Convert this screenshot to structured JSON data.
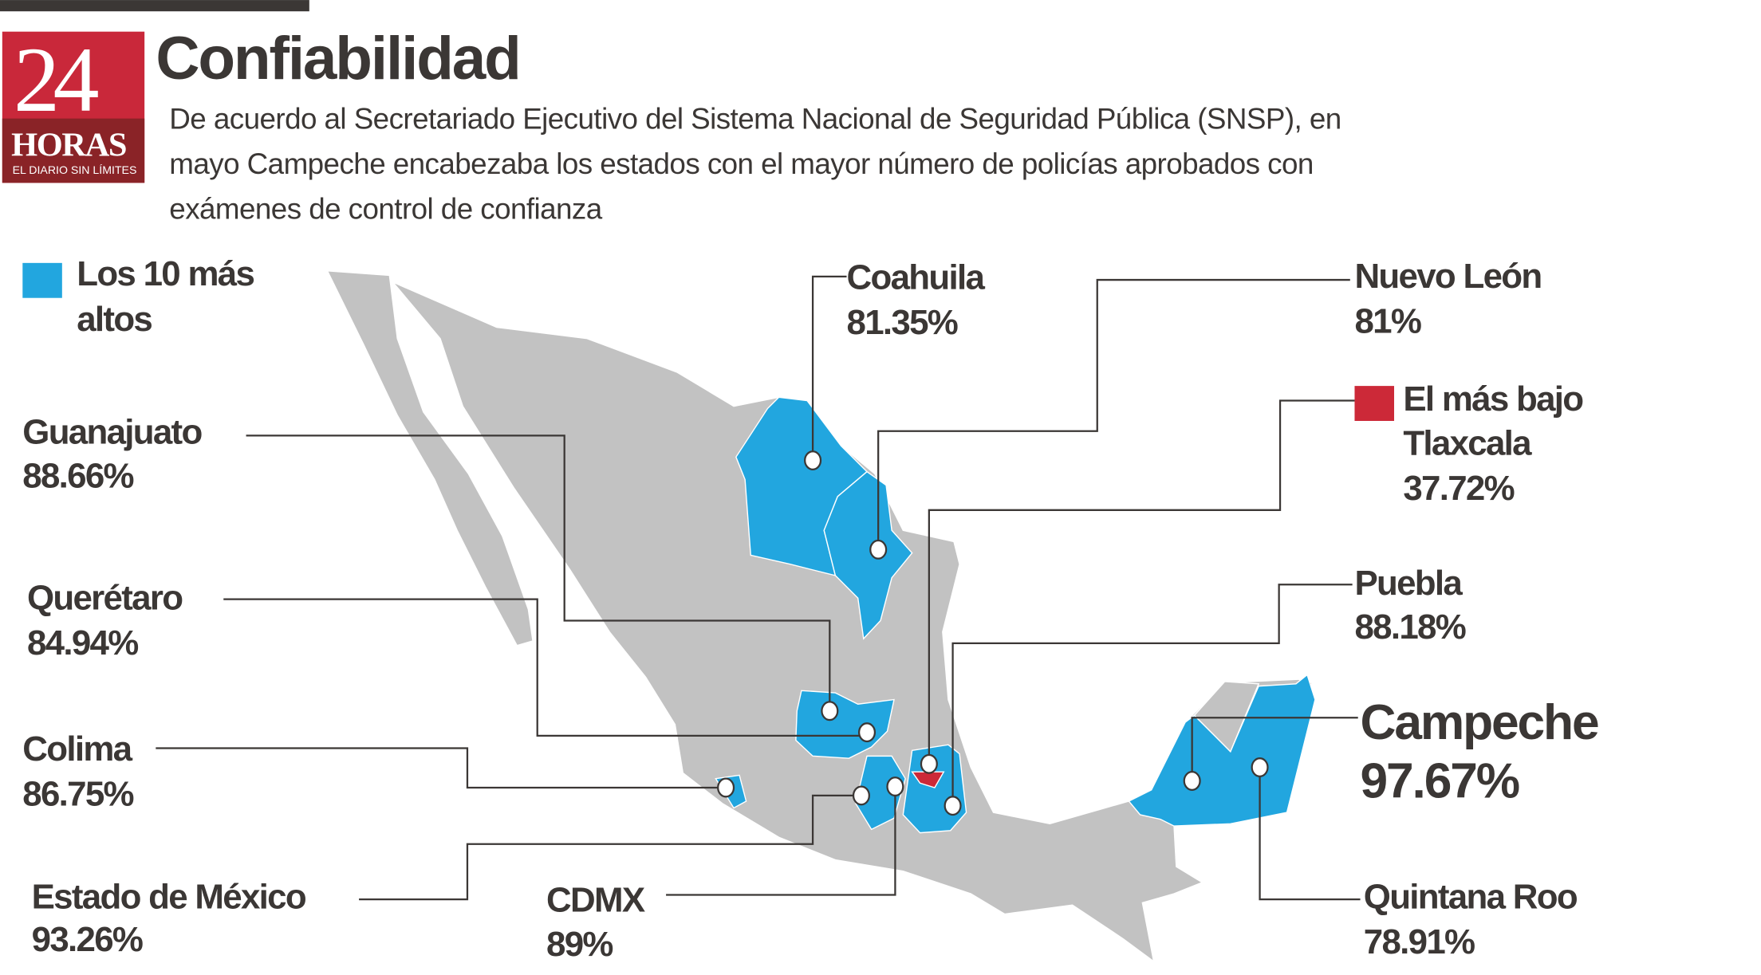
{
  "brand": {
    "logo_number": "24",
    "logo_word": "HORAS",
    "logo_tagline": "EL DIARIO SIN LÍMITES"
  },
  "header": {
    "title": "Confiabilidad",
    "description": [
      "De acuerdo al Secretariado Ejecutivo del Sistema Nacional de Seguridad Pública (SNSP), en",
      "mayo Campeche encabezaba los estados con el mayor número de policías aprobados con",
      "exámenes de control de confianza"
    ]
  },
  "legend": {
    "top10": [
      "Los 10 más",
      "altos"
    ],
    "lowest": [
      "El más bajo"
    ]
  },
  "colors": {
    "top10": "#22a6df",
    "lowest": "#cc2938",
    "other": "#c2c2c2",
    "text": "#3b3735",
    "brand": "#c9283a"
  },
  "states": {
    "coahuila": {
      "name": "Coahuila",
      "value": "81.35%"
    },
    "nuevo_leon": {
      "name": "Nuevo León",
      "value": "81%"
    },
    "tlaxcala": {
      "name": "Tlaxcala",
      "value": "37.72%"
    },
    "guanajuato": {
      "name": "Guanajuato",
      "value": "88.66%"
    },
    "queretaro": {
      "name": "Querétaro",
      "value": "84.94%"
    },
    "colima": {
      "name": "Colima",
      "value": "86.75%"
    },
    "edomex": {
      "name": "Estado de México",
      "value": "93.26%"
    },
    "cdmx": {
      "name": "CDMX",
      "value": "89%"
    },
    "puebla": {
      "name": "Puebla",
      "value": "88.18%"
    },
    "campeche": {
      "name": "Campeche",
      "value": "97.67%"
    },
    "quintana_roo": {
      "name": "Quintana Roo",
      "value": "78.91%"
    }
  }
}
